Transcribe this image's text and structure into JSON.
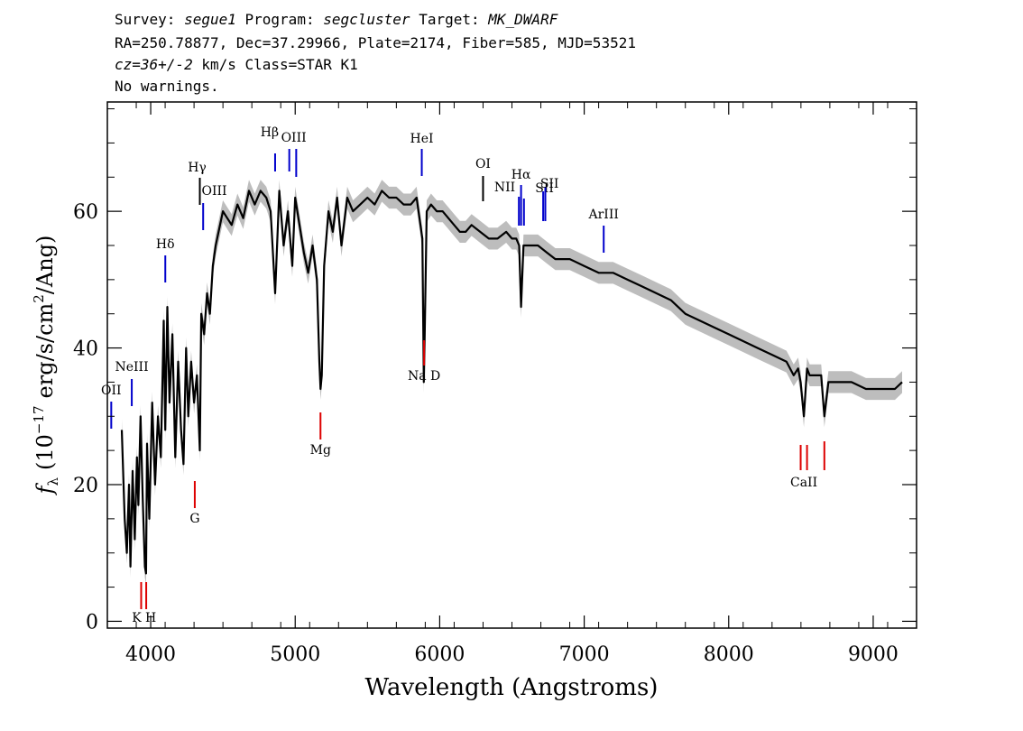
{
  "header": {
    "line1": {
      "survey_label": "Survey:",
      "survey": "segue1",
      "program_label": "Program:",
      "program": "segcluster",
      "target_label": "Target:",
      "target": "MK_DWARF"
    },
    "line2": "RA=250.78877, Dec=37.29966, Plate=2174, Fiber=585, MJD=53521",
    "line3": {
      "cz": "cz=36+/-2",
      "rest": "km/s Class=STAR K1"
    },
    "line4": "No warnings."
  },
  "colors": {
    "spectrum": "#000000",
    "error_band": "#bdbdbd",
    "emission_marker": "#0000cc",
    "absorption_marker": "#dd0000",
    "weak_marker": "#000000"
  },
  "chart_data": {
    "type": "line",
    "xlabel": "Wavelength (Angstroms)",
    "ylabel": "f_λ (10^-17 erg/s/cm^2/Ang)",
    "ylabel_parts": {
      "f": "f",
      "sub": "λ",
      "open": "(10",
      "exp": "−17",
      "mid": "erg/s/cm",
      "exp2": "2",
      "close": "/Ang)"
    },
    "xlim": [
      3700,
      9300
    ],
    "ylim": [
      -1,
      76
    ],
    "xticks": [
      4000,
      5000,
      6000,
      7000,
      8000,
      9000
    ],
    "yticks": [
      0,
      20,
      40,
      60
    ],
    "grid": false,
    "series": [
      {
        "x": [
          3800,
          3820,
          3835,
          3850,
          3860,
          3875,
          3890,
          3905,
          3915,
          3930,
          3945,
          3960,
          3968,
          3975,
          3990,
          4010,
          4030,
          4050,
          4070,
          4090,
          4101,
          4115,
          4130,
          4150,
          4170,
          4190,
          4210,
          4227,
          4245,
          4260,
          4280,
          4300,
          4320,
          4340,
          4350,
          4370,
          4390,
          4410,
          4430,
          4450,
          4470,
          4500,
          4530,
          4560,
          4600,
          4640,
          4680,
          4720,
          4760,
          4800,
          4830,
          4861,
          4890,
          4920,
          4950,
          4980,
          5000,
          5030,
          5060,
          5090,
          5120,
          5150,
          5167,
          5175,
          5184,
          5200,
          5230,
          5260,
          5290,
          5320,
          5360,
          5400,
          5450,
          5500,
          5550,
          5600,
          5650,
          5700,
          5750,
          5800,
          5840,
          5880,
          5890,
          5896,
          5910,
          5940,
          5980,
          6020,
          6060,
          6100,
          6140,
          6180,
          6220,
          6280,
          6340,
          6400,
          6460,
          6500,
          6530,
          6550,
          6563,
          6580,
          6620,
          6680,
          6740,
          6800,
          6900,
          7000,
          7100,
          7200,
          7300,
          7400,
          7500,
          7600,
          7700,
          7800,
          7900,
          8000,
          8100,
          8200,
          8300,
          8400,
          8450,
          8480,
          8498,
          8520,
          8542,
          8560,
          8600,
          8640,
          8662,
          8690,
          8750,
          8850,
          8950,
          9050,
          9150,
          9200
        ],
        "y": [
          28,
          15,
          10,
          20,
          8,
          22,
          12,
          24,
          17,
          30,
          18,
          8,
          7,
          26,
          15,
          32,
          20,
          30,
          24,
          44,
          28,
          46,
          32,
          42,
          24,
          38,
          28,
          23,
          40,
          30,
          38,
          32,
          36,
          25,
          45,
          42,
          48,
          45,
          52,
          55,
          57,
          60,
          59,
          58,
          61,
          59,
          63,
          61,
          63,
          62,
          60,
          48,
          63,
          55,
          60,
          52,
          62,
          58,
          54,
          51,
          55,
          50,
          38,
          34,
          36,
          52,
          60,
          57,
          62,
          55,
          62,
          60,
          61,
          62,
          61,
          63,
          62,
          62,
          61,
          61,
          62,
          56,
          35,
          42,
          60,
          61,
          60,
          60,
          59,
          58,
          57,
          57,
          58,
          57,
          56,
          56,
          57,
          56,
          56,
          55,
          46,
          55,
          55,
          55,
          54,
          53,
          53,
          52,
          51,
          51,
          50,
          49,
          48,
          47,
          45,
          44,
          43,
          42,
          41,
          40,
          39,
          38,
          36,
          37,
          35,
          30,
          37,
          36,
          36,
          36,
          30,
          35,
          35,
          35,
          34,
          34,
          34,
          35
        ]
      }
    ],
    "line_markers": [
      {
        "label": "Hβ",
        "wl": 4861,
        "color": "blue"
      },
      {
        "label": "OIII",
        "wl": 4959,
        "color": "blue"
      },
      {
        "label": "OIII",
        "wl": 5007,
        "color": "blue"
      },
      {
        "label": "HeI",
        "wl": 5876,
        "color": "blue"
      },
      {
        "label": "OI",
        "wl": 6300,
        "color": "black"
      },
      {
        "label": "NII",
        "wl": 6548,
        "color": "blue"
      },
      {
        "label": "Hα",
        "wl": 6563,
        "color": "blue"
      },
      {
        "label": "NII",
        "wl": 6583,
        "color": "blue"
      },
      {
        "label": "SII",
        "wl": 6716,
        "color": "blue"
      },
      {
        "label": "SII",
        "wl": 6731,
        "color": "blue"
      },
      {
        "label": "Hγ",
        "wl": 4340,
        "color": "black"
      },
      {
        "label": "OIII",
        "wl": 4363,
        "color": "blue"
      },
      {
        "label": "Hδ",
        "wl": 4101,
        "color": "blue"
      },
      {
        "label": "ArIII",
        "wl": 7135,
        "color": "blue"
      },
      {
        "label": "NeIII",
        "wl": 3869,
        "color": "blue"
      },
      {
        "label": "OII",
        "wl": 3727,
        "color": "blue"
      },
      {
        "label": "Na D",
        "wl": 5892,
        "color": "red"
      },
      {
        "label": "Mg",
        "wl": 5175,
        "color": "red"
      },
      {
        "label": "G",
        "wl": 4305,
        "color": "red"
      },
      {
        "label": "K",
        "wl": 3934,
        "color": "red"
      },
      {
        "label": "H",
        "wl": 3969,
        "color": "red"
      },
      {
        "label": "CaII",
        "wl": 8498,
        "color": "red"
      },
      {
        "label": "CaII",
        "wl": 8542,
        "color": "red"
      },
      {
        "label": "CaII",
        "wl": 8662,
        "color": "red"
      }
    ]
  }
}
